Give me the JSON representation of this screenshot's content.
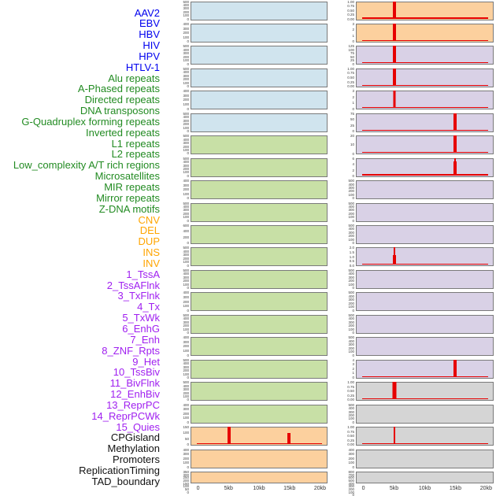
{
  "chart_data": {
    "type": "bar",
    "title": "",
    "layout": "small-multiples, 44 feature labels on left, 2 columns x 22 mini-panels, shared x-axis per column",
    "x_axis": {
      "ticks": [
        "0",
        "5kb",
        "10kb",
        "15kb",
        "20kb"
      ],
      "tick_kb": [
        0,
        5,
        10,
        15,
        20
      ],
      "range_kb": [
        0,
        20
      ]
    },
    "spike_color": "#e60000",
    "panel_border_color": "#7a7a7a",
    "panel_fills": {
      "blue": "#d0e4ee",
      "green": "#c8e0a6",
      "orange": "#fcd09e",
      "purple": "#d9d1e6",
      "gray": "#d5d5d5"
    },
    "label_colors": {
      "virus": "#0000ee",
      "repeats": "#228b22",
      "structural_variant": "#ffa500",
      "chromatin_state": "#a020f0",
      "regulation": "#111111"
    },
    "rows": [
      {
        "label": "AAV2",
        "group": "virus",
        "column": "left",
        "fill": "blue",
        "yticks": [
          "500",
          "400",
          "300",
          "200",
          "100",
          "0"
        ],
        "spikes": [],
        "baseline": false
      },
      {
        "label": "EBV",
        "group": "virus",
        "column": "left",
        "fill": "blue",
        "yticks": [
          "400",
          "300",
          "200",
          "100",
          "0"
        ],
        "spikes": [],
        "baseline": false
      },
      {
        "label": "HBV",
        "group": "virus",
        "column": "left",
        "fill": "blue",
        "yticks": [
          "500",
          "400",
          "300",
          "200",
          "100",
          "0"
        ],
        "spikes": [],
        "baseline": false
      },
      {
        "label": "HIV",
        "group": "virus",
        "column": "left",
        "fill": "blue",
        "yticks": [
          "500",
          "400",
          "300",
          "200",
          "100",
          "0"
        ],
        "spikes": [],
        "baseline": false
      },
      {
        "label": "HPV",
        "group": "virus",
        "column": "left",
        "fill": "blue",
        "yticks": [
          "400",
          "300",
          "200",
          "100",
          "0"
        ],
        "spikes": [],
        "baseline": false
      },
      {
        "label": "HTLV-1",
        "group": "virus",
        "column": "left",
        "fill": "blue",
        "yticks": [
          "500",
          "400",
          "300",
          "200",
          "100",
          "0"
        ],
        "spikes": [],
        "baseline": false
      },
      {
        "label": "Alu repeats",
        "group": "repeats",
        "column": "left",
        "fill": "green",
        "yticks": [
          "500",
          "400",
          "300",
          "200",
          "100",
          "0"
        ],
        "spikes": [],
        "baseline": false
      },
      {
        "label": "A-Phased repeats",
        "group": "repeats",
        "column": "left",
        "fill": "green",
        "yticks": [
          "500",
          "400",
          "300",
          "200",
          "100",
          "0"
        ],
        "spikes": [],
        "baseline": false
      },
      {
        "label": "Directed repeats",
        "group": "repeats",
        "column": "left",
        "fill": "green",
        "yticks": [
          "400",
          "300",
          "200",
          "100",
          "0"
        ],
        "spikes": [],
        "baseline": false
      },
      {
        "label": "DNA transposons",
        "group": "repeats",
        "column": "left",
        "fill": "green",
        "yticks": [
          "500",
          "400",
          "300",
          "200",
          "100",
          "0"
        ],
        "spikes": [],
        "baseline": false
      },
      {
        "label": "G-Quadruplex forming repeats",
        "group": "repeats",
        "column": "left",
        "fill": "green",
        "yticks": [
          "600",
          "400",
          "200",
          "0"
        ],
        "spikes": [],
        "baseline": false
      },
      {
        "label": "Inverted repeats",
        "group": "repeats",
        "column": "left",
        "fill": "green",
        "yticks": [
          "500",
          "400",
          "300",
          "200",
          "100",
          "0"
        ],
        "spikes": [],
        "baseline": false
      },
      {
        "label": "L1 repeats",
        "group": "repeats",
        "column": "left",
        "fill": "green",
        "yticks": [
          "500",
          "400",
          "300",
          "200",
          "100",
          "0"
        ],
        "spikes": [],
        "baseline": false
      },
      {
        "label": "L2 repeats",
        "group": "repeats",
        "column": "left",
        "fill": "green",
        "yticks": [
          "400",
          "300",
          "200",
          "100",
          "0"
        ],
        "spikes": [],
        "baseline": false
      },
      {
        "label": "Low_complexity A/T rich regions",
        "group": "repeats",
        "column": "left",
        "fill": "green",
        "yticks": [
          "500",
          "400",
          "300",
          "200",
          "100",
          "0"
        ],
        "spikes": [],
        "baseline": false
      },
      {
        "label": "Microsatellites",
        "group": "repeats",
        "column": "left",
        "fill": "green",
        "yticks": [
          "400",
          "300",
          "200",
          "100",
          "0"
        ],
        "spikes": [],
        "baseline": false
      },
      {
        "label": "MIR repeats",
        "group": "repeats",
        "column": "left",
        "fill": "green",
        "yticks": [
          "500",
          "400",
          "300",
          "200",
          "100",
          "0"
        ],
        "spikes": [],
        "baseline": false
      },
      {
        "label": "Mirror repeats",
        "group": "repeats",
        "column": "left",
        "fill": "green",
        "yticks": [
          "500",
          "400",
          "300",
          "200",
          "100",
          "0"
        ],
        "spikes": [],
        "baseline": false
      },
      {
        "label": "Z-DNA motifs",
        "group": "repeats",
        "column": "left",
        "fill": "green",
        "yticks": [
          "400",
          "300",
          "200",
          "100",
          "0"
        ],
        "spikes": [],
        "baseline": false
      },
      {
        "label": "CNV",
        "group": "structural_variant",
        "column": "left",
        "fill": "orange",
        "yticks": [
          "150",
          "100",
          "50",
          "0"
        ],
        "spikes": [
          {
            "kb": 5,
            "h": 1.0,
            "w": 4
          },
          {
            "kb": 15,
            "h": 0.65,
            "w": 4
          }
        ],
        "baseline": true
      },
      {
        "label": "DEL",
        "group": "structural_variant",
        "column": "left",
        "fill": "orange",
        "yticks": [
          "400",
          "300",
          "200",
          "100",
          "0"
        ],
        "spikes": [],
        "baseline": false
      },
      {
        "label": "DUP",
        "group": "structural_variant",
        "column": "left",
        "fill": "orange",
        "yticks": [
          "350",
          "300",
          "250",
          "200",
          "150",
          "100",
          "50",
          "0"
        ],
        "spikes": [],
        "baseline": false
      },
      {
        "label": "INS",
        "group": "structural_variant",
        "column": "right",
        "fill": "orange",
        "yticks": [
          "1.00",
          "0.75",
          "0.50",
          "0.25",
          "0.00"
        ],
        "spikes": [
          {
            "kb": 5,
            "h": 1.0,
            "w": 4
          }
        ],
        "baseline": true
      },
      {
        "label": "INV",
        "group": "structural_variant",
        "column": "right",
        "fill": "orange",
        "yticks": [
          "3",
          "2",
          "1",
          "0"
        ],
        "spikes": [
          {
            "kb": 5,
            "h": 1.0,
            "w": 4
          }
        ],
        "baseline": true
      },
      {
        "label": "1_TssA",
        "group": "chromatin_state",
        "column": "right",
        "fill": "purple",
        "yticks": [
          "125",
          "100",
          "75",
          "50",
          "25",
          "0"
        ],
        "spikes": [
          {
            "kb": 5,
            "h": 1.0,
            "w": 4
          }
        ],
        "baseline": true
      },
      {
        "label": "2_TssAFlnk",
        "group": "chromatin_state",
        "column": "right",
        "fill": "purple",
        "yticks": [
          "1.00",
          "0.75",
          "0.50",
          "0.25",
          "0.00"
        ],
        "spikes": [
          {
            "kb": 5,
            "h": 1.0,
            "w": 4
          }
        ],
        "baseline": true
      },
      {
        "label": "3_TxFlnk",
        "group": "chromatin_state",
        "column": "right",
        "fill": "purple",
        "yticks": [
          "3",
          "2",
          "1",
          "0"
        ],
        "spikes": [
          {
            "kb": 5,
            "h": 1.0,
            "w": 3
          }
        ],
        "baseline": true
      },
      {
        "label": "4_Tx",
        "group": "chromatin_state",
        "column": "right",
        "fill": "purple",
        "yticks": [
          "75",
          "50",
          "25",
          "0"
        ],
        "spikes": [
          {
            "kb": 15,
            "h": 1.0,
            "w": 4
          }
        ],
        "baseline": true
      },
      {
        "label": "5_TxWk",
        "group": "chromatin_state",
        "column": "right",
        "fill": "purple",
        "yticks": [
          "20",
          "10",
          "0"
        ],
        "spikes": [
          {
            "kb": 15,
            "h": 1.0,
            "w": 4
          }
        ],
        "baseline": true
      },
      {
        "label": "6_EnhG",
        "group": "chromatin_state",
        "column": "right",
        "fill": "purple",
        "yticks": [
          "6",
          "4",
          "2",
          "0"
        ],
        "spikes": [
          {
            "kb": 15,
            "h": 1.0,
            "w": 2
          },
          {
            "kb": 15,
            "h": 0.8,
            "w": 4
          }
        ],
        "baseline": true
      },
      {
        "label": "7_Enh",
        "group": "chromatin_state",
        "column": "right",
        "fill": "purple",
        "yticks": [
          "500",
          "400",
          "300",
          "200",
          "100",
          "0"
        ],
        "spikes": [],
        "baseline": false
      },
      {
        "label": "8_ZNF_Rpts",
        "group": "chromatin_state",
        "column": "right",
        "fill": "purple",
        "yticks": [
          "500",
          "400",
          "300",
          "200",
          "100",
          "0"
        ],
        "spikes": [],
        "baseline": false
      },
      {
        "label": "9_Het",
        "group": "chromatin_state",
        "column": "right",
        "fill": "purple",
        "yticks": [
          "500",
          "400",
          "300",
          "200",
          "100",
          "0"
        ],
        "spikes": [],
        "baseline": false
      },
      {
        "label": "10_TssBiv",
        "group": "chromatin_state",
        "column": "right",
        "fill": "purple",
        "yticks": [
          "2.0",
          "1.5",
          "1.0",
          "0.5",
          "0.0"
        ],
        "spikes": [
          {
            "kb": 5,
            "h": 1.0,
            "w": 2
          },
          {
            "kb": 5,
            "h": 0.55,
            "w": 4
          }
        ],
        "baseline": true
      },
      {
        "label": "11_BivFlnk",
        "group": "chromatin_state",
        "column": "right",
        "fill": "purple",
        "yticks": [
          "500",
          "400",
          "300",
          "200",
          "100",
          "0"
        ],
        "spikes": [],
        "baseline": false
      },
      {
        "label": "12_EnhBiv",
        "group": "chromatin_state",
        "column": "right",
        "fill": "purple",
        "yticks": [
          "500",
          "400",
          "300",
          "200",
          "100",
          "0"
        ],
        "spikes": [],
        "baseline": false
      },
      {
        "label": "13_ReprPC",
        "group": "chromatin_state",
        "column": "right",
        "fill": "purple",
        "yticks": [
          "500",
          "400",
          "300",
          "200",
          "100",
          "0"
        ],
        "spikes": [],
        "baseline": false
      },
      {
        "label": "14_ReprPCWk",
        "group": "chromatin_state",
        "column": "right",
        "fill": "purple",
        "yticks": [
          "500",
          "400",
          "300",
          "200",
          "100",
          "0"
        ],
        "spikes": [],
        "baseline": false
      },
      {
        "label": "15_Quies",
        "group": "chromatin_state",
        "column": "right",
        "fill": "purple",
        "yticks": [
          "4",
          "3",
          "2",
          "1",
          "0"
        ],
        "spikes": [
          {
            "kb": 15,
            "h": 1.0,
            "w": 4
          }
        ],
        "baseline": true
      },
      {
        "label": "CPGisland",
        "group": "regulation",
        "column": "right",
        "fill": "gray",
        "yticks": [
          "1.00",
          "0.75",
          "0.50",
          "0.25",
          "0.00"
        ],
        "spikes": [
          {
            "kb": 5,
            "h": 1.0,
            "w": 5
          }
        ],
        "baseline": true
      },
      {
        "label": "Methylation",
        "group": "regulation",
        "column": "right",
        "fill": "gray",
        "yticks": [
          "500",
          "400",
          "300",
          "200",
          "100",
          "0"
        ],
        "spikes": [],
        "baseline": false
      },
      {
        "label": "Promoters",
        "group": "regulation",
        "column": "right",
        "fill": "gray",
        "yticks": [
          "1.00",
          "0.75",
          "0.50",
          "0.25",
          "0.00"
        ],
        "spikes": [
          {
            "kb": 5,
            "h": 1.0,
            "w": 2
          }
        ],
        "baseline": true
      },
      {
        "label": "ReplicationTiming",
        "group": "regulation",
        "column": "right",
        "fill": "gray",
        "yticks": [
          "400",
          "300",
          "200",
          "100",
          "0"
        ],
        "spikes": [],
        "baseline": false
      },
      {
        "label": "TAD_boundary",
        "group": "regulation",
        "column": "right",
        "fill": "gray",
        "yticks": [
          "800",
          "700",
          "600",
          "500",
          "400",
          "300",
          "200",
          "100",
          "0"
        ],
        "spikes": [],
        "baseline": false
      }
    ]
  }
}
